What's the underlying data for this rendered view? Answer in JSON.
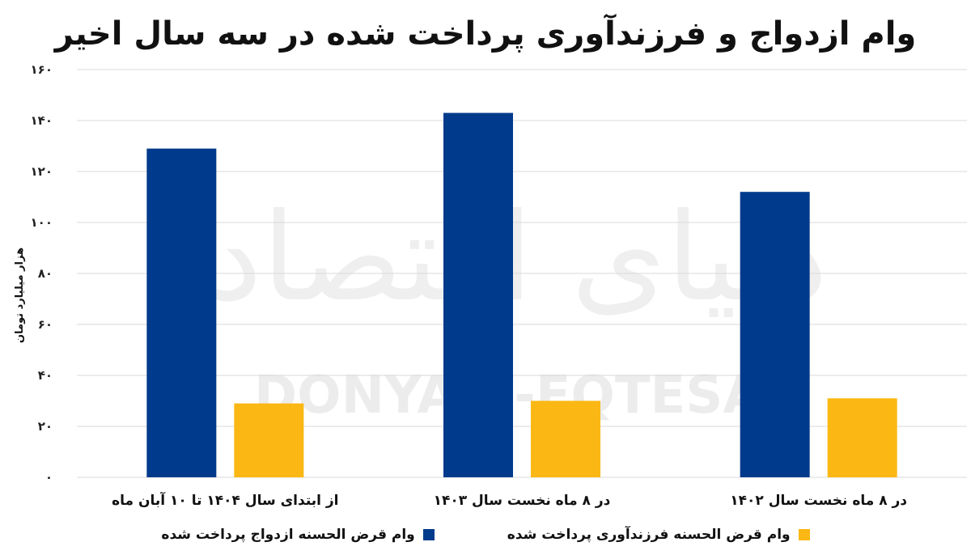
{
  "watermark": {
    "logo": "دنیای اقتصاد",
    "text": "DONYA-E-EQTESAD"
  },
  "chart_data": {
    "type": "bar",
    "title": "وام ازدواج و فرزندآوری پرداخت شده در سه سال اخیر",
    "ylabel": "هزار میلیارد تومان",
    "xlabel": "",
    "ylim": [
      0,
      160
    ],
    "yticks": [
      0,
      20,
      40,
      60,
      80,
      100,
      120,
      140,
      160
    ],
    "ytick_labels": [
      "۰",
      "۲۰",
      "۴۰",
      "۶۰",
      "۸۰",
      "۱۰۰",
      "۱۲۰",
      "۱۴۰",
      "۱۶۰"
    ],
    "categories": [
      "در ۸ ماه نخست سال ۱۴۰۲",
      "در ۸ ماه نخست سال ۱۴۰۳",
      "از ابتدای سال ۱۴۰۴ تا ۱۰ آبان ماه"
    ],
    "grid": true,
    "legend_position": "bottom",
    "series": [
      {
        "name": "وام قرض الحسنه ازدواج پرداخت شده",
        "color": "#003a8c",
        "values": [
          112,
          143,
          129
        ]
      },
      {
        "name": "وام قرض الحسنه فرزندآوری پرداخت شده",
        "color": "#fbb713",
        "values": [
          31,
          30,
          29
        ]
      }
    ]
  }
}
